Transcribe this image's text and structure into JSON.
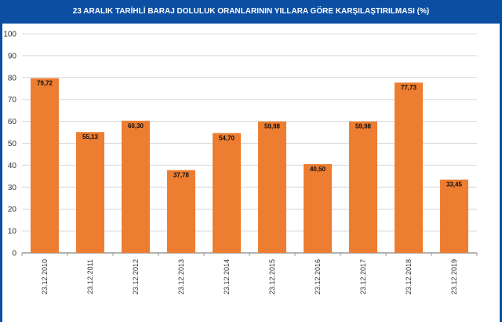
{
  "chart_data": {
    "type": "bar",
    "title": "23 ARALIK TARİHLİ BARAJ DOLULUK ORANLARININ YILLARA GÖRE KARŞILAŞTIRILMASI (%)",
    "categories": [
      "23.12.2010",
      "23.12.2011",
      "23.12.2012",
      "23.12.2013",
      "23.12.2014",
      "23.12.2015",
      "23.12.2016",
      "23.12.2017",
      "23.12.2018",
      "23.12.2019"
    ],
    "values": [
      79.72,
      55.13,
      60.3,
      37.78,
      54.7,
      59.98,
      40.5,
      59.98,
      77.73,
      33.45
    ],
    "value_labels": [
      "79,72",
      "55,13",
      "60,30",
      "37,78",
      "54,70",
      "59,98",
      "40,50",
      "59,98",
      "77,73",
      "33,45"
    ],
    "yticks": [
      "0",
      "10",
      "20",
      "30",
      "40",
      "50",
      "60",
      "70",
      "80",
      "90",
      "100"
    ],
    "ylim": [
      0,
      100
    ],
    "grid": true,
    "legend": "none",
    "colors": {
      "bar": "#ed7d31",
      "title_bg": "#0b4ea2",
      "grid": "#d9d9d9"
    }
  }
}
